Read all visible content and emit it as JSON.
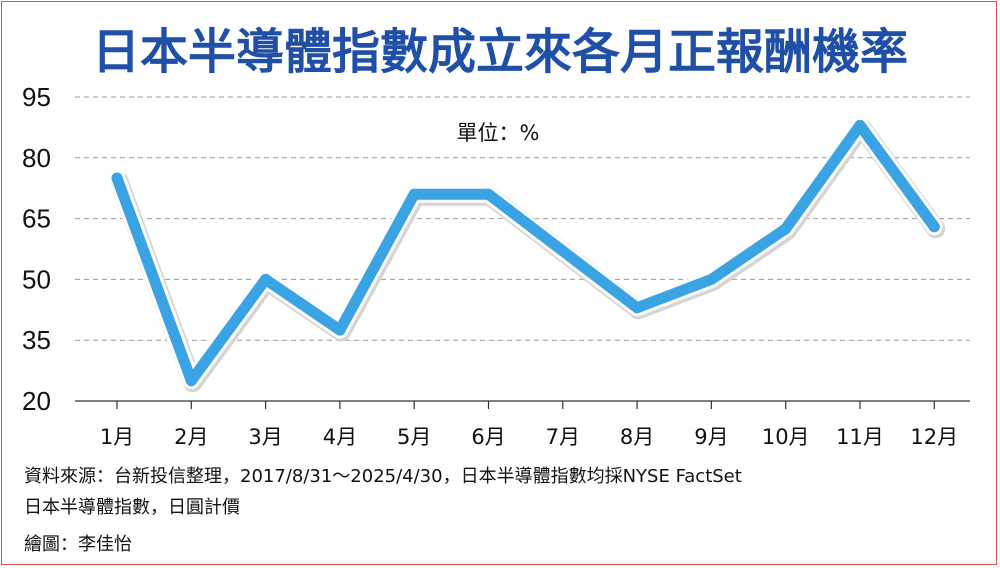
{
  "chart_data": {
    "type": "line",
    "title": "日本半導體指數成立來各月正報酬機率",
    "unit_label": "單位：%",
    "categories": [
      "1月",
      "2月",
      "3月",
      "4月",
      "5月",
      "6月",
      "7月",
      "8月",
      "9月",
      "10月",
      "11月",
      "12月"
    ],
    "series": [
      {
        "values": [
          75,
          25,
          50,
          37.5,
          71,
          71,
          57,
          43,
          50,
          62.5,
          88,
          63
        ],
        "color": "#3aa3e3"
      }
    ],
    "yticks": [
      "95",
      "80",
      "65",
      "50",
      "35",
      "20"
    ],
    "ylim": [
      20,
      95
    ],
    "grid": true,
    "colors": {
      "title": "#1f4fa6",
      "line": "#3aa3e3",
      "frame": "#d9534f"
    }
  },
  "footer": {
    "source_line1": "資料來源：台新投信整理，2017/8/31～2025/4/30，日本半導體指數均採NYSE FactSet",
    "source_line2": "日本半導體指數，日圓計價",
    "drawing_credit": "繪圖：李佳怡"
  }
}
